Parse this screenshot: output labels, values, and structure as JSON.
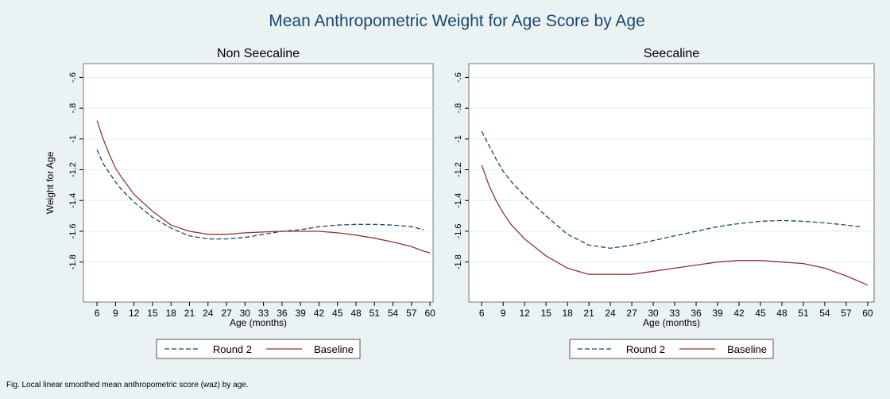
{
  "title": "Mean Anthropometric Weight for Age Score by Age",
  "note": "Fig. Local linear smoothed mean anthropometric score (waz) by age.",
  "chart_data": [
    {
      "type": "line",
      "title": "Non Seecaline",
      "x_label": "Age (months)",
      "y_label": "Weight for Age",
      "x": [
        6,
        7,
        8,
        9,
        10,
        12,
        15,
        18,
        21,
        24,
        27,
        30,
        33,
        36,
        39,
        42,
        45,
        48,
        51,
        54,
        57,
        59,
        60
      ],
      "series": [
        {
          "name": "Round 2",
          "color": "#1a476f",
          "dash": true,
          "values": [
            -1.07,
            -1.16,
            -1.22,
            -1.28,
            -1.33,
            -1.41,
            -1.51,
            -1.58,
            -1.63,
            -1.65,
            -1.65,
            -1.64,
            -1.62,
            -1.6,
            -1.59,
            -1.57,
            -1.56,
            -1.555,
            -1.555,
            -1.56,
            -1.57,
            -1.59,
            null
          ]
        },
        {
          "name": "Baseline",
          "color": "#90353b",
          "dash": false,
          "values": [
            -0.88,
            -1.0,
            -1.1,
            -1.19,
            -1.25,
            -1.36,
            -1.47,
            -1.56,
            -1.6,
            -1.62,
            -1.62,
            -1.61,
            -1.605,
            -1.6,
            -1.6,
            -1.6,
            -1.61,
            -1.625,
            -1.645,
            -1.67,
            -1.7,
            -1.73,
            -1.74
          ]
        }
      ],
      "xlim": [
        3.8,
        60.5
      ],
      "ylim": [
        -2.06,
        -0.51
      ],
      "xticks": [
        6,
        9,
        12,
        15,
        18,
        21,
        24,
        27,
        30,
        33,
        36,
        39,
        42,
        45,
        48,
        51,
        54,
        57,
        60
      ],
      "yticks": [
        {
          "value": -0.6,
          "label": "-.6"
        },
        {
          "value": -0.8,
          "label": "-.8"
        },
        -1,
        {
          "value": -1.2,
          "label": "-1.2"
        },
        {
          "value": -1.4,
          "label": "-1.4"
        },
        {
          "value": -1.6,
          "label": "-1.6"
        },
        {
          "value": -1.8,
          "label": "-1.8"
        }
      ],
      "grid": true,
      "legend": "bottom"
    },
    {
      "type": "line",
      "title": "Seecaline",
      "x_label": "Age (months)",
      "x": [
        6,
        7,
        8,
        9,
        10,
        12,
        15,
        18,
        21,
        24,
        27,
        30,
        33,
        36,
        39,
        42,
        45,
        48,
        51,
        54,
        57,
        59,
        60
      ],
      "series": [
        {
          "name": "Round 2",
          "color": "#1a476f",
          "dash": true,
          "values": [
            -0.95,
            -1.04,
            -1.13,
            -1.21,
            -1.27,
            -1.37,
            -1.5,
            -1.62,
            -1.69,
            -1.71,
            -1.69,
            -1.66,
            -1.63,
            -1.6,
            -1.57,
            -1.55,
            -1.535,
            -1.53,
            -1.535,
            -1.545,
            -1.56,
            -1.57,
            null
          ]
        },
        {
          "name": "Baseline",
          "color": "#90353b",
          "dash": false,
          "values": [
            -1.17,
            -1.3,
            -1.4,
            -1.48,
            -1.55,
            -1.65,
            -1.76,
            -1.84,
            -1.88,
            -1.88,
            -1.88,
            -1.86,
            -1.84,
            -1.82,
            -1.8,
            -1.79,
            -1.79,
            -1.8,
            -1.81,
            -1.84,
            -1.89,
            -1.93,
            -1.95
          ]
        }
      ],
      "xlim": [
        4.2,
        60.9
      ],
      "ylim": [
        -2.06,
        -0.51
      ],
      "xticks": [
        6,
        9,
        12,
        15,
        18,
        21,
        24,
        27,
        30,
        33,
        36,
        39,
        42,
        45,
        48,
        51,
        54,
        57,
        60
      ],
      "yticks": [
        {
          "value": -0.6,
          "label": "-.6"
        },
        {
          "value": -0.8,
          "label": "-.8"
        },
        -1,
        {
          "value": -1.2,
          "label": "-1.2"
        },
        {
          "value": -1.4,
          "label": "-1.4"
        },
        {
          "value": -1.6,
          "label": "-1.6"
        },
        {
          "value": -1.8,
          "label": "-1.8"
        }
      ],
      "grid": true,
      "legend": "bottom"
    }
  ]
}
